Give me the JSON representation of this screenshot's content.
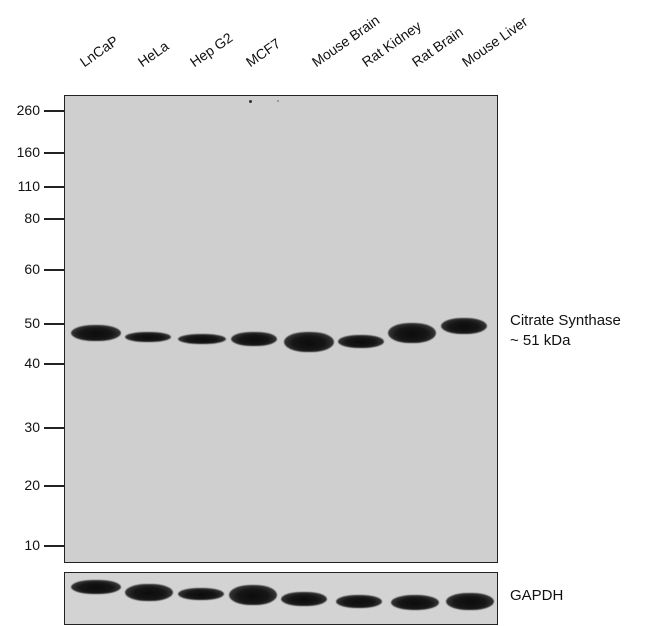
{
  "lanes": [
    "LnCaP",
    "HeLa",
    "Hep G2",
    "MCF7",
    "Mouse Brain",
    "Rat Kidney",
    "Rat Brain",
    "Mouse Liver"
  ],
  "markers": [
    {
      "label": "260",
      "kda": 260
    },
    {
      "label": "160",
      "kda": 160
    },
    {
      "label": "110",
      "kda": 110
    },
    {
      "label": "80",
      "kda": 80
    },
    {
      "label": "60",
      "kda": 60
    },
    {
      "label": "50",
      "kda": 50
    },
    {
      "label": "40",
      "kda": 40
    },
    {
      "label": "30",
      "kda": 30
    },
    {
      "label": "20",
      "kda": 20
    },
    {
      "label": "10",
      "kda": 10
    }
  ],
  "target": {
    "name": "Citrate Synthase",
    "size": "~ 51 kDa"
  },
  "loading_control": {
    "name": "GAPDH"
  }
}
